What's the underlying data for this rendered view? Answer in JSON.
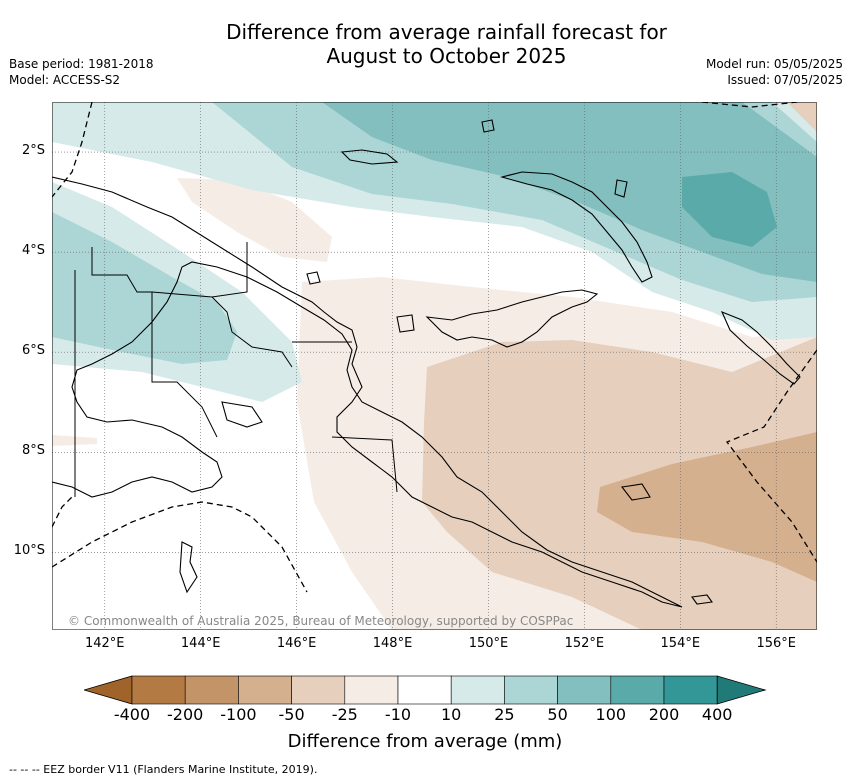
{
  "title": {
    "line1": "Difference from average rainfall forecast for",
    "line2": "August to October 2025"
  },
  "meta_left": {
    "base_period": "Base period: 1981-2018",
    "model": "Model: ACCESS-S2"
  },
  "meta_right": {
    "model_run": "Model run: 05/05/2025",
    "issued": "Issued: 07/05/2025"
  },
  "map": {
    "lon_min": 140.9,
    "lon_max": 156.85,
    "lat_min": -11.55,
    "lat_max": -1.0,
    "x_ticks": [
      "142°E",
      "144°E",
      "146°E",
      "148°E",
      "150°E",
      "152°E",
      "154°E",
      "156°E"
    ],
    "x_tick_values": [
      142,
      144,
      146,
      148,
      150,
      152,
      154,
      156
    ],
    "y_ticks": [
      "2°S",
      "4°S",
      "6°S",
      "8°S",
      "10°S"
    ],
    "y_tick_values": [
      -2,
      -4,
      -6,
      -8,
      -10
    ],
    "gridlines": true,
    "copyright": "© Commonwealth of Australia 2025, Bureau of Meteorology, supported by COSPPac"
  },
  "colorbar": {
    "title": "Difference from average (mm)",
    "labels": [
      "-400",
      "-200",
      "-100",
      "-50",
      "-25",
      "-10",
      "10",
      "25",
      "50",
      "100",
      "200",
      "400"
    ],
    "colors": [
      "#a0642b",
      "#b37a44",
      "#c29468",
      "#d4b08f",
      "#e6d0bd",
      "#f5ece6",
      "#ffffff",
      "#d6eae9",
      "#acd5d5",
      "#84bfbf",
      "#5aaaaa",
      "#339797",
      "#1f7a78"
    ]
  },
  "eez_note": "-- -- -- EEZ border V11 (Flanders Marine Institute, 2019)."
}
